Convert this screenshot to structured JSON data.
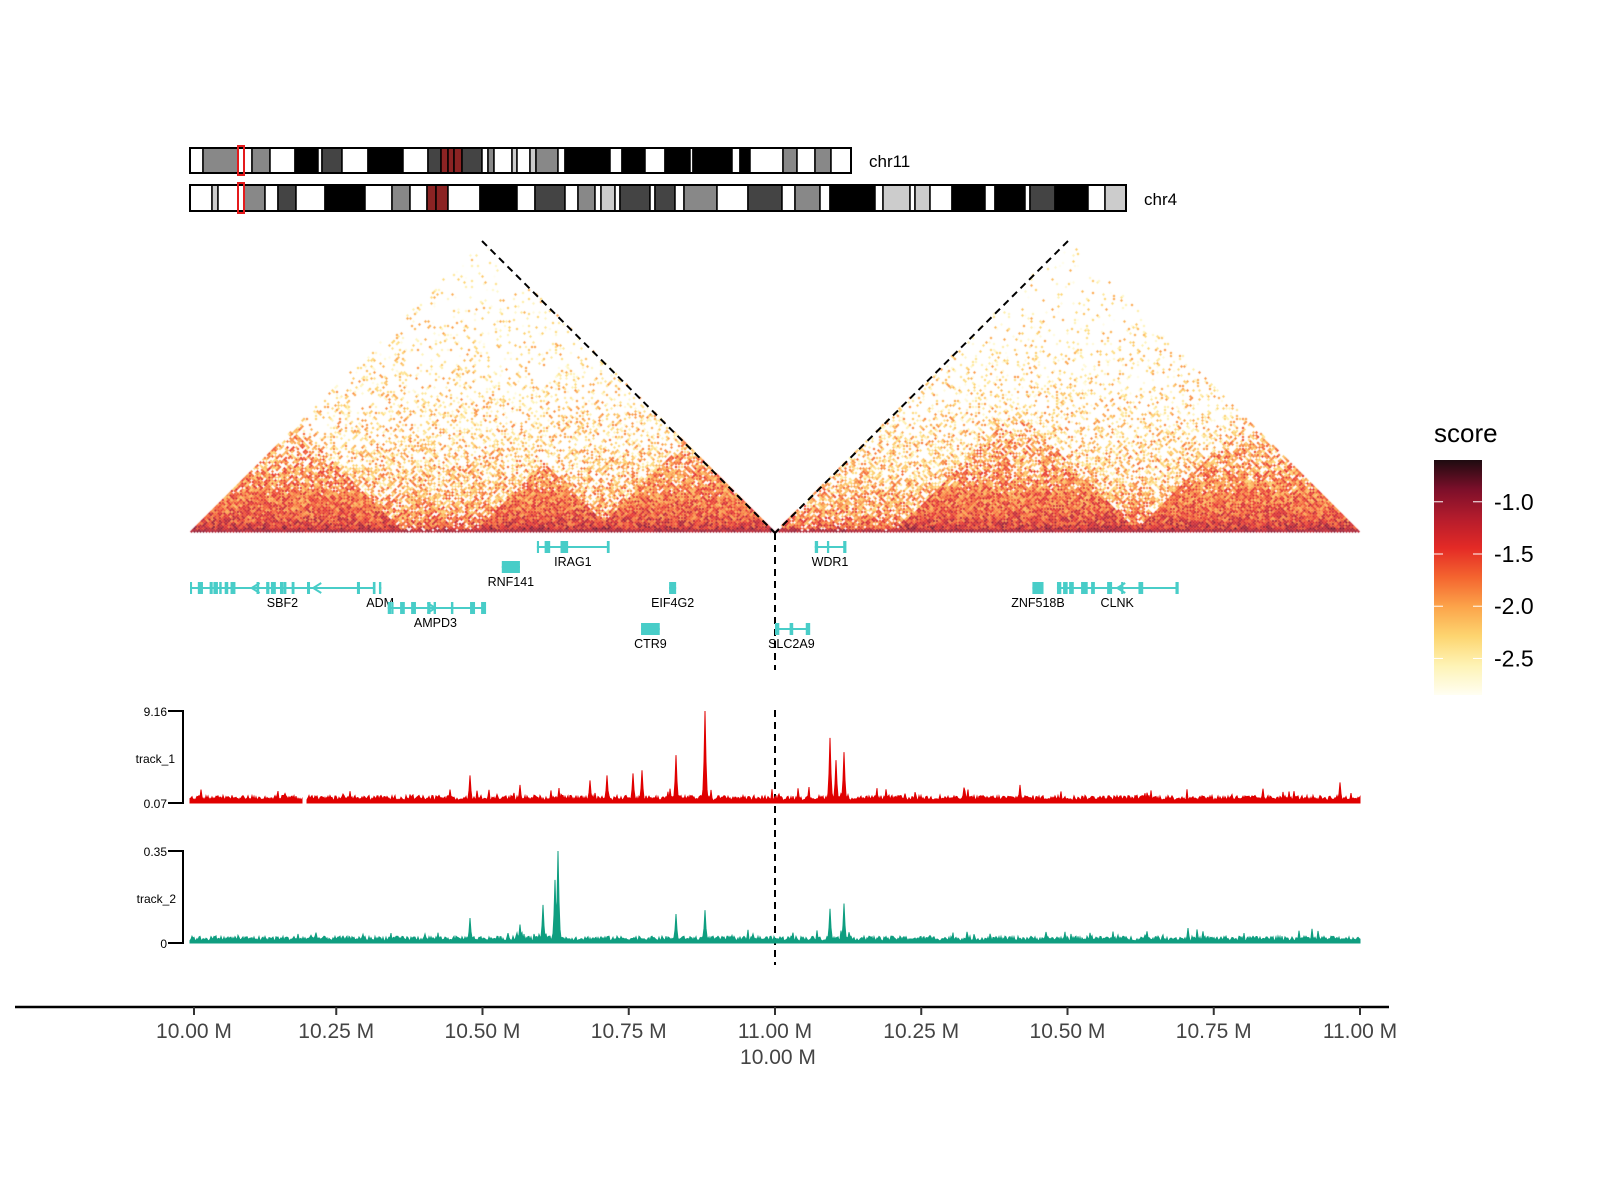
{
  "chart_data": {
    "type": "heatmap",
    "description_type": "hic-triangle-with-genes-and-signal-tracks",
    "ideograms": [
      {
        "name": "chr11",
        "highlight_color": "#e41a1c"
      },
      {
        "name": "chr4",
        "highlight_color": "#e41a1c"
      }
    ],
    "regions": [
      {
        "chrom": "chr11",
        "start_mb": 10.0,
        "end_mb": 11.0
      },
      {
        "chrom": "chr4",
        "start_mb": 10.0,
        "end_mb": 11.0
      }
    ],
    "x_ticks": [
      "10.00 M",
      "10.25 M",
      "10.50 M",
      "10.75 M",
      "11.00 M",
      "10.25 M",
      "10.50 M",
      "10.75 M",
      "11.00 M"
    ],
    "x_tick_boundary_second_label": "10.00 M",
    "legend": {
      "title": "score",
      "ticks": [
        "-1.0",
        "-1.5",
        "-2.0",
        "-2.5"
      ],
      "tick_values": [
        -1.0,
        -1.5,
        -2.0,
        -2.5
      ],
      "range": [
        -2.85,
        -0.6
      ],
      "colors": [
        "#fffef2",
        "#fef3b5",
        "#fdd570",
        "#fca44a",
        "#f4652f",
        "#e42a26",
        "#b51c2c",
        "#7c0f2a",
        "#1e0b10"
      ],
      "placement": "right"
    },
    "genes": [
      {
        "name": "SBF2",
        "chrom": "chr11",
        "start": 10.0,
        "end": 10.316,
        "strand": "-",
        "row": 2
      },
      {
        "name": "ADM",
        "chrom": "chr11",
        "start": 10.323,
        "end": 10.327,
        "strand": "+",
        "row": 2
      },
      {
        "name": "AMPD3",
        "chrom": "chr11",
        "start": 10.338,
        "end": 10.501,
        "strand": "+",
        "row": 3
      },
      {
        "name": "RNF141",
        "chrom": "chr11",
        "start": 10.533,
        "end": 10.564,
        "strand": "-",
        "row": 1
      },
      {
        "name": "IRAG1",
        "chrom": "chr11",
        "start": 10.593,
        "end": 10.716,
        "strand": "-",
        "row": 0
      },
      {
        "name": "EIF4G2",
        "chrom": "chr11",
        "start": 10.819,
        "end": 10.831,
        "strand": "-",
        "row": 2
      },
      {
        "name": "CTR9",
        "chrom": "chr11",
        "start": 10.771,
        "end": 10.803,
        "strand": "+",
        "row": 4
      },
      {
        "name": "WDR1",
        "chrom": "chr4",
        "start": 10.068,
        "end": 10.12,
        "strand": "-",
        "row": 0
      },
      {
        "name": "SLC2A9",
        "chrom": "chr4",
        "start": 10.0,
        "end": 10.056,
        "strand": "-",
        "row": 4
      },
      {
        "name": "ZNF518B",
        "chrom": "chr4",
        "start": 10.44,
        "end": 10.459,
        "strand": "-",
        "row": 2
      },
      {
        "name": "CLNK",
        "chrom": "chr4",
        "start": 10.482,
        "end": 10.688,
        "strand": "-",
        "row": 2
      }
    ],
    "gene_color": "#48cdc8",
    "tracks": [
      {
        "name": "track_1",
        "color": "#e00000",
        "ylim": [
          0.07,
          9.16
        ],
        "ylim_labels": [
          "0.07",
          "9.16"
        ],
        "peaks": [
          {
            "chrom": "chr11",
            "pos": 10.479,
            "value": 2.8
          },
          {
            "chrom": "chr11",
            "pos": 10.564,
            "value": 1.85
          },
          {
            "chrom": "chr11",
            "pos": 10.684,
            "value": 2.3
          },
          {
            "chrom": "chr11",
            "pos": 10.713,
            "value": 2.8
          },
          {
            "chrom": "chr11",
            "pos": 10.757,
            "value": 3.0
          },
          {
            "chrom": "chr11",
            "pos": 10.773,
            "value": 3.3
          },
          {
            "chrom": "chr11",
            "pos": 10.831,
            "value": 4.8
          },
          {
            "chrom": "chr11",
            "pos": 10.88,
            "value": 9.16
          },
          {
            "chrom": "chr4",
            "pos": 10.094,
            "value": 6.5
          },
          {
            "chrom": "chr4",
            "pos": 10.104,
            "value": 4.3
          },
          {
            "chrom": "chr4",
            "pos": 10.118,
            "value": 5.1
          },
          {
            "chrom": "chr4",
            "pos": 10.419,
            "value": 1.85
          },
          {
            "chrom": "chr4",
            "pos": 10.966,
            "value": 2.1
          }
        ]
      },
      {
        "name": "track_2",
        "color": "#0f9e80",
        "ylim": [
          0,
          0.35
        ],
        "ylim_labels": [
          "0",
          "0.35"
        ],
        "peaks": [
          {
            "chrom": "chr11",
            "pos": 10.479,
            "value": 0.095
          },
          {
            "chrom": "chr11",
            "pos": 10.564,
            "value": 0.07
          },
          {
            "chrom": "chr11",
            "pos": 10.603,
            "value": 0.145
          },
          {
            "chrom": "chr11",
            "pos": 10.624,
            "value": 0.24
          },
          {
            "chrom": "chr11",
            "pos": 10.629,
            "value": 0.35
          },
          {
            "chrom": "chr11",
            "pos": 10.831,
            "value": 0.11
          },
          {
            "chrom": "chr11",
            "pos": 10.88,
            "value": 0.125
          },
          {
            "chrom": "chr4",
            "pos": 10.094,
            "value": 0.13
          },
          {
            "chrom": "chr4",
            "pos": 10.118,
            "value": 0.15
          },
          {
            "chrom": "chr4",
            "pos": 10.706,
            "value": 0.057
          }
        ]
      }
    ]
  }
}
